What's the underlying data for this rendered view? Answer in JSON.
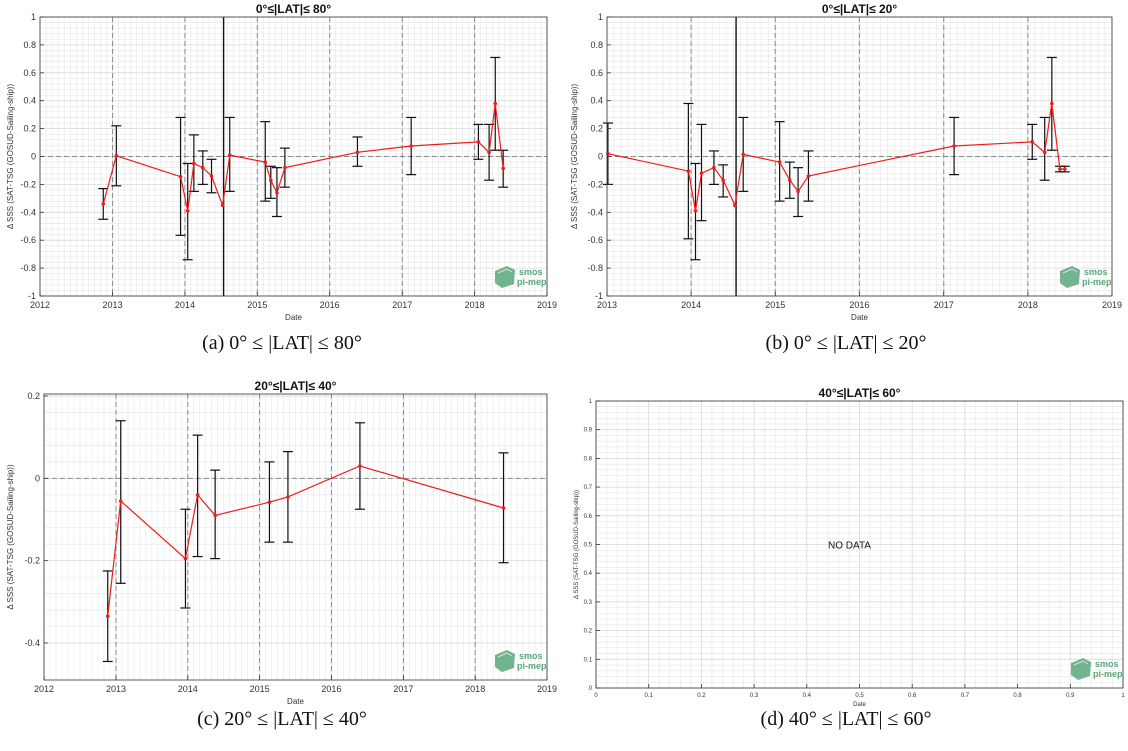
{
  "colors": {
    "series": "#ee1c1c",
    "errorbar": "#111111",
    "grid_major_dashed": "#888888",
    "grid_minor": "#e6e6e6",
    "logo": "#5aa77c"
  },
  "logo": {
    "line1": "smos",
    "line2": "pi-mep",
    "icon": "smos-pimep-logo-icon"
  },
  "panels": [
    {
      "caption": "(a) 0° ≤ |LAT| ≤ 80°",
      "pos": "top-left"
    },
    {
      "caption": "(b) 0° ≤ |LAT| ≤ 20°",
      "pos": "top-right"
    },
    {
      "caption": "(c) 20° ≤ |LAT| ≤ 40°",
      "pos": "bottom-left"
    },
    {
      "caption": "(d) 40° ≤ |LAT| ≤ 60°",
      "pos": "bottom-right"
    }
  ],
  "chart_data": [
    {
      "type": "line",
      "title": "0°≤|LAT|≤ 80°",
      "xlabel": "Date",
      "ylabel": "Δ SSS (SAT-TSG (GOSUD-Sailing-ship))",
      "xlim": [
        "2012-01-01",
        "2019-01-01"
      ],
      "ylim": [
        -1,
        1
      ],
      "xticks": [
        "2012",
        "2013",
        "2014",
        "2015",
        "2016",
        "2017",
        "2018",
        "2019"
      ],
      "yticks": [
        -1,
        -0.8,
        -0.6,
        -0.4,
        -0.2,
        0,
        0.2,
        0.4,
        0.6,
        0.8,
        1
      ],
      "ytick_labels": [
        "-1",
        "-0.8",
        "-0.6",
        "-0.4",
        "-0.2",
        "0",
        "0.2",
        "0.4",
        "0.6",
        "0.8",
        "1"
      ],
      "grid": true,
      "dashed_vlines": [
        "2013-01-01",
        "2014-01-01",
        "2015-01-01",
        "2016-01-01",
        "2017-01-01",
        "2018-01-01"
      ],
      "zero_line": 0,
      "vertical_bar": {
        "x": "2014-07-15",
        "lo": -1,
        "hi": 1
      },
      "series": [
        {
          "points": [
            {
              "x": "2012-11-15",
              "y": -0.34,
              "lo": -0.45,
              "hi": -0.23
            },
            {
              "x": "2013-01-20",
              "y": 0.005,
              "lo": -0.21,
              "hi": 0.22
            },
            {
              "x": "2013-12-10",
              "y": -0.145,
              "lo": -0.565,
              "hi": 0.28
            },
            {
              "x": "2014-01-15",
              "y": -0.39,
              "lo": -0.74,
              "hi": -0.05
            },
            {
              "x": "2014-02-15",
              "y": -0.05,
              "lo": -0.25,
              "hi": 0.155
            },
            {
              "x": "2014-04-01",
              "y": -0.08,
              "lo": -0.2,
              "hi": 0.04
            },
            {
              "x": "2014-05-15",
              "y": -0.14,
              "lo": -0.26,
              "hi": -0.02
            },
            {
              "x": "2014-07-10",
              "y": -0.35
            },
            {
              "x": "2014-08-15",
              "y": 0.01,
              "lo": -0.25,
              "hi": 0.28
            },
            {
              "x": "2015-02-10",
              "y": -0.04,
              "lo": -0.32,
              "hi": 0.25
            },
            {
              "x": "2015-03-10",
              "y": -0.17,
              "lo": -0.3,
              "hi": -0.07
            },
            {
              "x": "2015-04-10",
              "y": -0.26,
              "lo": -0.43,
              "hi": -0.08
            },
            {
              "x": "2015-05-20",
              "y": -0.08,
              "lo": -0.22,
              "hi": 0.06
            },
            {
              "x": "2016-05-20",
              "y": 0.03,
              "lo": -0.07,
              "hi": 0.14
            },
            {
              "x": "2017-02-15",
              "y": 0.075,
              "lo": -0.13,
              "hi": 0.28
            },
            {
              "x": "2018-01-20",
              "y": 0.105,
              "lo": -0.02,
              "hi": 0.23
            },
            {
              "x": "2018-03-15",
              "y": 0.03,
              "lo": -0.17,
              "hi": 0.23
            },
            {
              "x": "2018-04-15",
              "y": 0.38,
              "lo": 0.045,
              "hi": 0.71
            },
            {
              "x": "2018-05-25",
              "y": -0.085,
              "lo": -0.22,
              "hi": 0.045
            }
          ]
        }
      ]
    },
    {
      "type": "line",
      "title": "0°≤|LAT|≤ 20°",
      "xlabel": "Date",
      "ylabel": "Δ SSS (SAT-TSG (GOSUD-Sailing-ship))",
      "xlim": [
        "2013-01-01",
        "2019-01-01"
      ],
      "ylim": [
        -1,
        1
      ],
      "xticks": [
        "2013",
        "2014",
        "2015",
        "2016",
        "2017",
        "2018",
        "2019"
      ],
      "yticks": [
        -1,
        -0.8,
        -0.6,
        -0.4,
        -0.2,
        0,
        0.2,
        0.4,
        0.6,
        0.8,
        1
      ],
      "ytick_labels": [
        "-1",
        "-0.8",
        "-0.6",
        "-0.4",
        "-0.2",
        "0",
        "0.2",
        "0.4",
        "0.6",
        "0.8",
        "1"
      ],
      "grid": true,
      "dashed_vlines": [
        "2014-01-01",
        "2015-01-01",
        "2016-01-01",
        "2017-01-01",
        "2018-01-01"
      ],
      "zero_line": 0,
      "vertical_bar": {
        "x": "2014-07-15",
        "lo": -1,
        "hi": 1
      },
      "series": [
        {
          "points": [
            {
              "x": "2013-01-05",
              "y": 0.02,
              "lo": -0.2,
              "hi": 0.24
            },
            {
              "x": "2013-12-20",
              "y": -0.105,
              "lo": -0.59,
              "hi": 0.38
            },
            {
              "x": "2014-01-20",
              "y": -0.39,
              "lo": -0.74,
              "hi": -0.05
            },
            {
              "x": "2014-02-15",
              "y": -0.12,
              "lo": -0.46,
              "hi": 0.23
            },
            {
              "x": "2014-04-10",
              "y": -0.08,
              "lo": -0.2,
              "hi": 0.04
            },
            {
              "x": "2014-05-20",
              "y": -0.17,
              "lo": -0.29,
              "hi": -0.06
            },
            {
              "x": "2014-07-10",
              "y": -0.35
            },
            {
              "x": "2014-08-15",
              "y": 0.015,
              "lo": -0.25,
              "hi": 0.28
            },
            {
              "x": "2015-01-20",
              "y": -0.04,
              "lo": -0.32,
              "hi": 0.25
            },
            {
              "x": "2015-03-05",
              "y": -0.17,
              "lo": -0.3,
              "hi": -0.04
            },
            {
              "x": "2015-04-10",
              "y": -0.25,
              "lo": -0.43,
              "hi": -0.08
            },
            {
              "x": "2015-05-25",
              "y": -0.14,
              "lo": -0.32,
              "hi": 0.04
            },
            {
              "x": "2017-02-15",
              "y": 0.075,
              "lo": -0.13,
              "hi": 0.28
            },
            {
              "x": "2018-01-20",
              "y": 0.105,
              "lo": -0.02,
              "hi": 0.23
            },
            {
              "x": "2018-03-15",
              "y": 0.03,
              "lo": -0.17,
              "hi": 0.28
            },
            {
              "x": "2018-04-15",
              "y": 0.38,
              "lo": 0.045,
              "hi": 0.71
            },
            {
              "x": "2018-05-20",
              "y": -0.09,
              "lo": -0.11,
              "hi": -0.07
            },
            {
              "x": "2018-06-10",
              "y": -0.09,
              "lo": -0.11,
              "hi": -0.07
            }
          ]
        }
      ]
    },
    {
      "type": "line",
      "title": "20°≤|LAT|≤ 40°",
      "xlabel": "Date",
      "ylabel": "Δ SSS (SAT-TSG (GOSUD-Sailing-ship))",
      "xlim": [
        "2012-01-01",
        "2019-01-01"
      ],
      "ylim": [
        -0.49,
        0.205
      ],
      "xticks": [
        "2012",
        "2013",
        "2014",
        "2015",
        "2016",
        "2017",
        "2018",
        "2019"
      ],
      "yticks": [
        -0.4,
        -0.2,
        0,
        0.2
      ],
      "ytick_labels": [
        "-0.4",
        "-0.2",
        "0",
        "0.2"
      ],
      "grid": true,
      "dashed_vlines": [
        "2013-01-01",
        "2014-01-01",
        "2015-01-01",
        "2016-01-01",
        "2017-01-01",
        "2018-01-01"
      ],
      "zero_line": 0,
      "series": [
        {
          "points": [
            {
              "x": "2012-11-20",
              "y": -0.335,
              "lo": -0.445,
              "hi": -0.225
            },
            {
              "x": "2013-01-25",
              "y": -0.055,
              "lo": -0.255,
              "hi": 0.14
            },
            {
              "x": "2013-12-20",
              "y": -0.195,
              "lo": -0.315,
              "hi": -0.075
            },
            {
              "x": "2014-02-20",
              "y": -0.04,
              "lo": -0.19,
              "hi": 0.105
            },
            {
              "x": "2014-05-20",
              "y": -0.09,
              "lo": -0.195,
              "hi": 0.02
            },
            {
              "x": "2015-02-20",
              "y": -0.058,
              "lo": -0.155,
              "hi": 0.04
            },
            {
              "x": "2015-05-25",
              "y": -0.045,
              "lo": -0.155,
              "hi": 0.065
            },
            {
              "x": "2016-05-25",
              "y": 0.03,
              "lo": -0.075,
              "hi": 0.135
            },
            {
              "x": "2018-05-25",
              "y": -0.072,
              "lo": -0.205,
              "hi": 0.062
            }
          ]
        }
      ]
    },
    {
      "type": "line",
      "title": "40°≤|LAT|≤ 60°",
      "xlabel": "Date",
      "ylabel": "Δ SSS (SAT-TSG (GOSUD-Sailing-ship))",
      "xlim": [
        0,
        1
      ],
      "ylim": [
        0,
        1
      ],
      "xticks": [
        0,
        0.1,
        0.2,
        0.3,
        0.4,
        0.5,
        0.6,
        0.7,
        0.8,
        0.9,
        1
      ],
      "xtick_labels": [
        "0",
        "0.1",
        "0.2",
        "0.3",
        "0.4",
        "0.5",
        "0.6",
        "0.7",
        "0.8",
        "0.9",
        "1"
      ],
      "yticks": [
        0,
        0.1,
        0.2,
        0.3,
        0.4,
        0.5,
        0.6,
        0.7,
        0.8,
        0.9,
        1
      ],
      "ytick_labels": [
        "0",
        "0.1",
        "0.2",
        "0.3",
        "0.4",
        "0.5",
        "0.6",
        "0.7",
        "0.8",
        "0.9",
        "1"
      ],
      "grid": true,
      "no_data_text": "NO DATA",
      "series": []
    }
  ]
}
